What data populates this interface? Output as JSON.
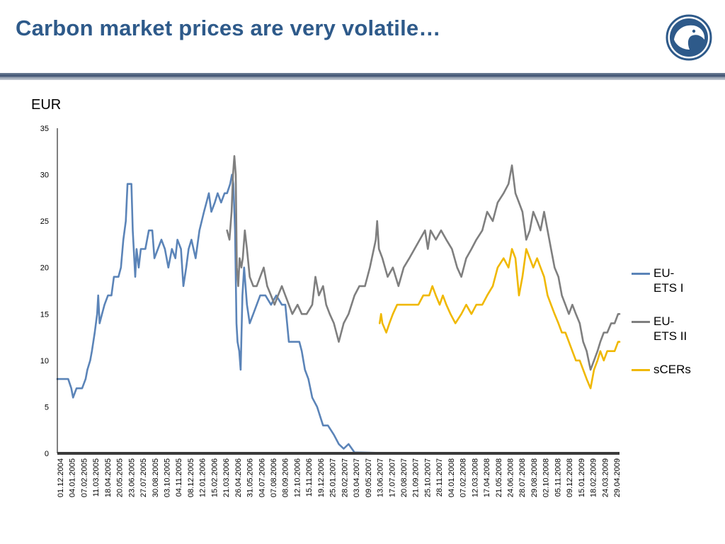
{
  "slide": {
    "title": "Carbon market prices are very volatile…"
  },
  "logo": {
    "icon": "eagle-head-logo-icon",
    "color": "#2E5A8A"
  },
  "colors": {
    "axis": "#000000",
    "grid": "#8C8C8C",
    "background": "#FFFFFF"
  },
  "chart_data": {
    "type": "line",
    "title": "",
    "ylabel": "EUR",
    "xlabel": "",
    "ylim": [
      0,
      35
    ],
    "yticks": [
      "0",
      "5",
      "10",
      "15",
      "20",
      "25",
      "30",
      "35"
    ],
    "grid": true,
    "legend_position": "right",
    "x_start": "01.12.2004",
    "x_end": "29.04.2009",
    "xtick_labels": [
      "01.12.2004",
      "04.01.2005",
      "07.02.2005",
      "11.03.2005",
      "18.04.2005",
      "20.05.2005",
      "23.06.2005",
      "27.07.2005",
      "30.08.2005",
      "03.10.2005",
      "04.11.2005",
      "08.12.2005",
      "12.01.2006",
      "15.02.2006",
      "21.03.2006",
      "26.04.2006",
      "31.05.2006",
      "04.07.2006",
      "07.08.2006",
      "08.09.2006",
      "12.10.2006",
      "15.11.2006",
      "19.12.2006",
      "25.01.2007",
      "28.02.2007",
      "03.04.2007",
      "09.05.2007",
      "13.06.2007",
      "17.07.2007",
      "20.08.2007",
      "21.09.2007",
      "25.10.2007",
      "28.11.2007",
      "04.01.2008",
      "07.02.2008",
      "12.03.2008",
      "17.04.2008",
      "21.05.2008",
      "24.06.2008",
      "28.07.2008",
      "29.08.2008",
      "02.10.2008",
      "05.11.2008",
      "09.12.2008",
      "15.01.2009",
      "18.02.2009",
      "24.03.2009",
      "29.04.2009"
    ],
    "series": [
      {
        "name": "EU-\nETS I",
        "color": "#5B84B8",
        "points": [
          [
            "01.12.2004",
            8
          ],
          [
            "01.01.2005",
            8
          ],
          [
            "10.01.2005",
            7
          ],
          [
            "15.01.2005",
            6
          ],
          [
            "25.01.2005",
            7
          ],
          [
            "10.02.2005",
            7
          ],
          [
            "20.02.2005",
            8
          ],
          [
            "25.02.2005",
            9
          ],
          [
            "05.03.2005",
            10
          ],
          [
            "10.03.2005",
            11
          ],
          [
            "18.03.2005",
            13
          ],
          [
            "25.03.2005",
            15
          ],
          [
            "28.03.2005",
            17
          ],
          [
            "01.04.2005",
            14
          ],
          [
            "08.04.2005",
            15
          ],
          [
            "15.04.2005",
            16
          ],
          [
            "25.04.2005",
            17
          ],
          [
            "05.05.2005",
            17
          ],
          [
            "12.05.2005",
            19
          ],
          [
            "25.05.2005",
            19
          ],
          [
            "01.06.2005",
            20
          ],
          [
            "08.06.2005",
            23
          ],
          [
            "15.06.2005",
            25
          ],
          [
            "20.06.2005",
            29
          ],
          [
            "01.07.2005",
            29
          ],
          [
            "05.07.2005",
            24
          ],
          [
            "12.07.2005",
            19
          ],
          [
            "16.07.2005",
            22
          ],
          [
            "22.07.2005",
            20
          ],
          [
            "28.07.2005",
            22
          ],
          [
            "10.08.2005",
            22
          ],
          [
            "20.08.2005",
            24
          ],
          [
            "30.08.2005",
            24
          ],
          [
            "05.09.2005",
            21
          ],
          [
            "15.09.2005",
            22
          ],
          [
            "25.09.2005",
            23
          ],
          [
            "05.10.2005",
            22
          ],
          [
            "15.10.2005",
            20
          ],
          [
            "25.10.2005",
            22
          ],
          [
            "04.11.2005",
            21
          ],
          [
            "10.11.2005",
            23
          ],
          [
            "20.11.2005",
            22
          ],
          [
            "27.11.2005",
            18
          ],
          [
            "05.12.2005",
            20
          ],
          [
            "12.12.2005",
            22
          ],
          [
            "20.12.2005",
            23
          ],
          [
            "01.01.2006",
            21
          ],
          [
            "12.01.2006",
            24
          ],
          [
            "25.01.2006",
            26
          ],
          [
            "01.02.2006",
            27
          ],
          [
            "08.02.2006",
            28
          ],
          [
            "15.02.2006",
            26
          ],
          [
            "25.02.2006",
            27
          ],
          [
            "05.03.2006",
            28
          ],
          [
            "15.03.2006",
            27
          ],
          [
            "25.03.2006",
            28
          ],
          [
            "01.04.2006",
            28
          ],
          [
            "10.04.2006",
            29
          ],
          [
            "15.04.2006",
            30
          ],
          [
            "19.04.2006",
            29
          ],
          [
            "24.04.2006",
            24
          ],
          [
            "28.04.2006",
            14
          ],
          [
            "01.05.2006",
            12
          ],
          [
            "06.05.2006",
            11
          ],
          [
            "10.05.2006",
            9
          ],
          [
            "15.05.2006",
            17
          ],
          [
            "20.05.2006",
            20
          ],
          [
            "28.05.2006",
            16
          ],
          [
            "05.06.2006",
            14
          ],
          [
            "15.06.2006",
            15
          ],
          [
            "25.06.2006",
            16
          ],
          [
            "05.07.2006",
            17
          ],
          [
            "20.07.2006",
            17
          ],
          [
            "05.08.2006",
            16
          ],
          [
            "20.08.2006",
            17
          ],
          [
            "05.09.2006",
            16
          ],
          [
            "15.09.2006",
            16
          ],
          [
            "20.09.2006",
            14
          ],
          [
            "25.09.2006",
            12
          ],
          [
            "10.10.2006",
            12
          ],
          [
            "25.10.2006",
            12
          ],
          [
            "01.11.2006",
            11
          ],
          [
            "10.11.2006",
            9
          ],
          [
            "20.11.2006",
            8
          ],
          [
            "01.12.2006",
            6
          ],
          [
            "15.12.2006",
            5
          ],
          [
            "01.01.2007",
            3
          ],
          [
            "15.01.2007",
            3
          ],
          [
            "01.02.2007",
            2
          ],
          [
            "15.02.2007",
            1
          ],
          [
            "01.03.2007",
            0.5
          ],
          [
            "15.03.2007",
            1
          ],
          [
            "01.04.2007",
            0.1
          ],
          [
            "01.06.2007",
            0.05
          ],
          [
            "25.08.2007",
            0.03
          ]
        ]
      },
      {
        "name": "EU-\nETS II",
        "color": "#7F7F7F",
        "points": [
          [
            "01.04.2006",
            24
          ],
          [
            "08.04.2006",
            23
          ],
          [
            "14.04.2006",
            26
          ],
          [
            "18.04.2006",
            30
          ],
          [
            "22.04.2006",
            32
          ],
          [
            "26.04.2006",
            30
          ],
          [
            "29.04.2006",
            20
          ],
          [
            "03.05.2006",
            18
          ],
          [
            "07.05.2006",
            21
          ],
          [
            "12.05.2006",
            20
          ],
          [
            "16.05.2006",
            21
          ],
          [
            "22.05.2006",
            24
          ],
          [
            "28.05.2006",
            22
          ],
          [
            "05.06.2006",
            19
          ],
          [
            "15.06.2006",
            18
          ],
          [
            "25.06.2006",
            18
          ],
          [
            "05.07.2006",
            19
          ],
          [
            "15.07.2006",
            20
          ],
          [
            "25.07.2006",
            18
          ],
          [
            "05.08.2006",
            17
          ],
          [
            "15.08.2006",
            16
          ],
          [
            "25.08.2006",
            17
          ],
          [
            "05.09.2006",
            18
          ],
          [
            "15.09.2006",
            17
          ],
          [
            "25.09.2006",
            16
          ],
          [
            "05.10.2006",
            15
          ],
          [
            "20.10.2006",
            16
          ],
          [
            "01.11.2006",
            15
          ],
          [
            "15.11.2006",
            15
          ],
          [
            "01.12.2006",
            16
          ],
          [
            "10.12.2006",
            19
          ],
          [
            "20.12.2006",
            17
          ],
          [
            "01.01.2007",
            18
          ],
          [
            "10.01.2007",
            16
          ],
          [
            "20.01.2007",
            15
          ],
          [
            "01.02.2007",
            14
          ],
          [
            "15.02.2007",
            12
          ],
          [
            "01.03.2007",
            14
          ],
          [
            "15.03.2007",
            15
          ],
          [
            "01.04.2007",
            17
          ],
          [
            "15.04.2007",
            18
          ],
          [
            "01.05.2007",
            18
          ],
          [
            "15.05.2007",
            20
          ],
          [
            "01.06.2007",
            23
          ],
          [
            "05.06.2007",
            25
          ],
          [
            "10.06.2007",
            22
          ],
          [
            "20.06.2007",
            21
          ],
          [
            "05.07.2007",
            19
          ],
          [
            "20.07.2007",
            20
          ],
          [
            "05.08.2007",
            18
          ],
          [
            "20.08.2007",
            20
          ],
          [
            "05.09.2007",
            21
          ],
          [
            "20.09.2007",
            22
          ],
          [
            "05.10.2007",
            23
          ],
          [
            "20.10.2007",
            24
          ],
          [
            "28.10.2007",
            22
          ],
          [
            "05.11.2007",
            24
          ],
          [
            "20.11.2007",
            23
          ],
          [
            "05.12.2007",
            24
          ],
          [
            "20.12.2007",
            23
          ],
          [
            "05.01.2008",
            22
          ],
          [
            "20.01.2008",
            20
          ],
          [
            "01.02.2008",
            19
          ],
          [
            "15.02.2008",
            21
          ],
          [
            "01.03.2008",
            22
          ],
          [
            "15.03.2008",
            23
          ],
          [
            "01.04.2008",
            24
          ],
          [
            "15.04.2008",
            26
          ],
          [
            "01.05.2008",
            25
          ],
          [
            "15.05.2008",
            27
          ],
          [
            "01.06.2008",
            28
          ],
          [
            "15.06.2008",
            29
          ],
          [
            "25.06.2008",
            31
          ],
          [
            "05.07.2008",
            28
          ],
          [
            "15.07.2008",
            27
          ],
          [
            "25.07.2008",
            26
          ],
          [
            "05.08.2008",
            23
          ],
          [
            "15.08.2008",
            24
          ],
          [
            "25.08.2008",
            26
          ],
          [
            "05.09.2008",
            25
          ],
          [
            "15.09.2008",
            24
          ],
          [
            "25.09.2008",
            26
          ],
          [
            "05.10.2008",
            24
          ],
          [
            "15.10.2008",
            22
          ],
          [
            "25.10.2008",
            20
          ],
          [
            "05.11.2008",
            19
          ],
          [
            "15.11.2008",
            17
          ],
          [
            "25.11.2008",
            16
          ],
          [
            "05.12.2008",
            15
          ],
          [
            "15.12.2008",
            16
          ],
          [
            "25.12.2008",
            15
          ],
          [
            "05.01.2009",
            14
          ],
          [
            "15.01.2009",
            12
          ],
          [
            "25.01.2009",
            11
          ],
          [
            "05.02.2009",
            9
          ],
          [
            "15.02.2009",
            10
          ],
          [
            "25.02.2009",
            11
          ],
          [
            "05.03.2009",
            12
          ],
          [
            "15.03.2009",
            13
          ],
          [
            "25.03.2009",
            13
          ],
          [
            "05.04.2009",
            14
          ],
          [
            "15.04.2009",
            14
          ],
          [
            "25.04.2009",
            15
          ],
          [
            "29.04.2009",
            15
          ]
        ]
      },
      {
        "name": "sCERs",
        "color": "#F0B800",
        "points": [
          [
            "12.06.2007",
            14
          ],
          [
            "16.06.2007",
            15
          ],
          [
            "20.06.2007",
            14
          ],
          [
            "01.07.2007",
            13
          ],
          [
            "10.07.2007",
            14
          ],
          [
            "20.07.2007",
            15
          ],
          [
            "01.08.2007",
            16
          ],
          [
            "15.08.2007",
            16
          ],
          [
            "01.09.2007",
            16
          ],
          [
            "15.09.2007",
            16
          ],
          [
            "01.10.2007",
            16
          ],
          [
            "15.10.2007",
            17
          ],
          [
            "01.11.2007",
            17
          ],
          [
            "10.11.2007",
            18
          ],
          [
            "20.11.2007",
            17
          ],
          [
            "01.12.2007",
            16
          ],
          [
            "10.12.2007",
            17
          ],
          [
            "20.12.2007",
            16
          ],
          [
            "01.01.2008",
            15
          ],
          [
            "15.01.2008",
            14
          ],
          [
            "01.02.2008",
            15
          ],
          [
            "15.02.2008",
            16
          ],
          [
            "01.03.2008",
            15
          ],
          [
            "15.03.2008",
            16
          ],
          [
            "01.04.2008",
            16
          ],
          [
            "15.04.2008",
            17
          ],
          [
            "01.05.2008",
            18
          ],
          [
            "15.05.2008",
            20
          ],
          [
            "01.06.2008",
            21
          ],
          [
            "15.06.2008",
            20
          ],
          [
            "25.06.2008",
            22
          ],
          [
            "05.07.2008",
            21
          ],
          [
            "15.07.2008",
            17
          ],
          [
            "25.07.2008",
            19
          ],
          [
            "05.08.2008",
            22
          ],
          [
            "15.08.2008",
            21
          ],
          [
            "25.08.2008",
            20
          ],
          [
            "05.09.2008",
            21
          ],
          [
            "15.09.2008",
            20
          ],
          [
            "25.09.2008",
            19
          ],
          [
            "05.10.2008",
            17
          ],
          [
            "15.10.2008",
            16
          ],
          [
            "25.10.2008",
            15
          ],
          [
            "05.11.2008",
            14
          ],
          [
            "15.11.2008",
            13
          ],
          [
            "25.11.2008",
            13
          ],
          [
            "05.12.2008",
            12
          ],
          [
            "15.12.2008",
            11
          ],
          [
            "25.12.2008",
            10
          ],
          [
            "05.01.2009",
            10
          ],
          [
            "15.01.2009",
            9
          ],
          [
            "25.01.2009",
            8
          ],
          [
            "05.02.2009",
            7
          ],
          [
            "15.02.2009",
            9
          ],
          [
            "25.02.2009",
            10
          ],
          [
            "05.03.2009",
            11
          ],
          [
            "15.03.2009",
            10
          ],
          [
            "25.03.2009",
            11
          ],
          [
            "05.04.2009",
            11
          ],
          [
            "15.04.2009",
            11
          ],
          [
            "25.04.2009",
            12
          ],
          [
            "29.04.2009",
            12
          ]
        ]
      }
    ]
  }
}
